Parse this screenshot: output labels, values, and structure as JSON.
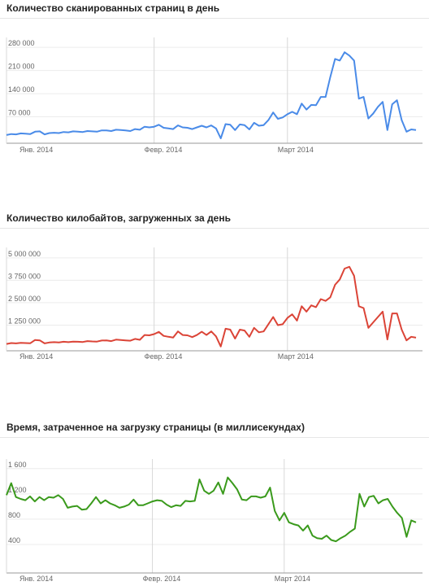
{
  "chart_data": [
    {
      "type": "line",
      "title": "Количество сканированных страниц в день",
      "color": "#4a8be8",
      "ylim": [
        0,
        300000
      ],
      "yticks": [
        {
          "v": 70000,
          "label": "70 000"
        },
        {
          "v": 140000,
          "label": "140 000"
        },
        {
          "v": 210000,
          "label": "210 000"
        },
        {
          "v": 280000,
          "label": "280 000"
        }
      ],
      "xticks": [
        {
          "i": 0,
          "label": "Янв. 2014"
        },
        {
          "i": 31,
          "label": "Февр. 2014"
        },
        {
          "i": 59,
          "label": "Март 2014"
        }
      ],
      "grid": true,
      "values": [
        15000,
        18000,
        17000,
        20000,
        19000,
        18000,
        25000,
        26000,
        17000,
        21000,
        22000,
        21000,
        24000,
        23000,
        26000,
        25000,
        24000,
        27000,
        26000,
        25000,
        29000,
        29000,
        27000,
        31000,
        30000,
        29000,
        27000,
        33000,
        31000,
        40000,
        38000,
        40000,
        46000,
        37000,
        35000,
        33000,
        44000,
        38000,
        37000,
        33000,
        38000,
        43000,
        38000,
        44000,
        35000,
        5000,
        48000,
        46000,
        30000,
        47000,
        45000,
        32000,
        52000,
        43000,
        45000,
        60000,
        83000,
        64000,
        68000,
        78000,
        85000,
        78000,
        110000,
        92000,
        106000,
        105000,
        130000,
        130000,
        190000,
        245000,
        240000,
        265000,
        255000,
        240000,
        125000,
        130000,
        65000,
        80000,
        100000,
        115000,
        30000,
        108000,
        120000,
        60000,
        25000,
        32000,
        30000
      ]
    },
    {
      "type": "line",
      "title": "Количество килобайтов, загруженных за день",
      "color": "#db4437",
      "ylim": [
        0,
        5400000
      ],
      "yticks": [
        {
          "v": 1250000,
          "label": "1 250 000"
        },
        {
          "v": 2500000,
          "label": "2 500 000"
        },
        {
          "v": 3750000,
          "label": "3 750 000"
        },
        {
          "v": 5000000,
          "label": "5 000 000"
        }
      ],
      "xticks": [
        {
          "i": 0,
          "label": "Янв. 2014"
        },
        {
          "i": 31,
          "label": "Февр. 2014"
        },
        {
          "i": 59,
          "label": "Март 2014"
        }
      ],
      "grid": true,
      "values": [
        200000,
        250000,
        230000,
        260000,
        250000,
        240000,
        420000,
        400000,
        230000,
        280000,
        300000,
        280000,
        320000,
        300000,
        330000,
        320000,
        310000,
        360000,
        340000,
        330000,
        390000,
        400000,
        360000,
        440000,
        420000,
        400000,
        380000,
        480000,
        430000,
        700000,
        680000,
        750000,
        870000,
        650000,
        600000,
        560000,
        900000,
        700000,
        680000,
        580000,
        700000,
        880000,
        700000,
        900000,
        620000,
        60000,
        1050000,
        1000000,
        500000,
        1000000,
        950000,
        600000,
        1100000,
        850000,
        900000,
        1300000,
        1700000,
        1250000,
        1300000,
        1650000,
        1850000,
        1500000,
        2300000,
        2000000,
        2350000,
        2250000,
        2700000,
        2600000,
        2800000,
        3500000,
        3800000,
        4400000,
        4500000,
        4000000,
        2300000,
        2200000,
        1100000,
        1400000,
        1700000,
        2000000,
        450000,
        1900000,
        1900000,
        1000000,
        400000,
        600000,
        550000
      ]
    },
    {
      "type": "line",
      "title": "Время, затраченное на загрузку страницы (в миллисекундах)",
      "color": "#3a9a1c",
      "ylim": [
        0,
        1700
      ],
      "yticks": [
        {
          "v": 400,
          "label": "400"
        },
        {
          "v": 800,
          "label": "800"
        },
        {
          "v": 1200,
          "label": "1 200"
        },
        {
          "v": 1600,
          "label": "1 600"
        }
      ],
      "xticks": [
        {
          "i": 0,
          "label": "Янв. 2014"
        },
        {
          "i": 31,
          "label": "Февр. 2014"
        },
        {
          "i": 59,
          "label": "Март 2014"
        }
      ],
      "grid": true,
      "values": [
        1180,
        1370,
        1150,
        1120,
        1100,
        1160,
        1080,
        1150,
        1100,
        1150,
        1140,
        1180,
        1120,
        980,
        1000,
        1010,
        950,
        960,
        1050,
        1150,
        1050,
        1100,
        1050,
        1020,
        980,
        1000,
        1030,
        1110,
        1020,
        1020,
        1050,
        1080,
        1100,
        1090,
        1030,
        990,
        1020,
        1010,
        1090,
        1080,
        1090,
        1430,
        1250,
        1200,
        1250,
        1380,
        1200,
        1460,
        1370,
        1270,
        1110,
        1100,
        1160,
        1160,
        1140,
        1160,
        1300,
        930,
        780,
        900,
        750,
        720,
        700,
        620,
        700,
        540,
        500,
        490,
        540,
        470,
        450,
        500,
        540,
        600,
        650,
        1200,
        1000,
        1150,
        1170,
        1050,
        1100,
        1120,
        1000,
        900,
        820,
        520,
        780,
        750
      ]
    }
  ]
}
